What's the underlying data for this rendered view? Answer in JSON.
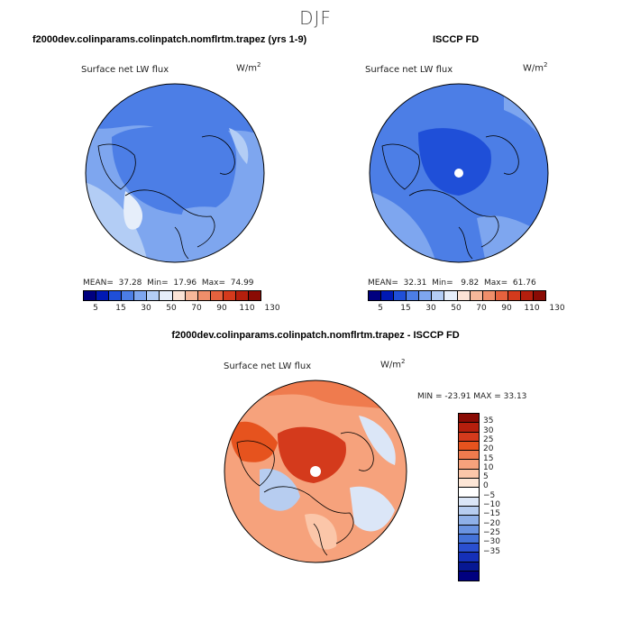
{
  "title": "DJF",
  "panel1": {
    "case": "f2000dev.colinparams.colinpatch.nomflrtm.trapez (yrs 1-9)",
    "variable": "Surface net LW flux",
    "unit_base": "W/m",
    "unit_exp": "2",
    "mean_label": "MEAN=",
    "mean": "37.28",
    "min_label": "Min=",
    "min": "17.96",
    "max_label": "Max=",
    "max": "74.99"
  },
  "panel2": {
    "case": "ISCCP FD",
    "variable": "Surface net LW flux",
    "unit_base": "W/m",
    "unit_exp": "2",
    "mean_label": "MEAN=",
    "mean": "32.31",
    "min_label": "Min=",
    "min": "9.82",
    "max_label": "Max=",
    "max": "61.76"
  },
  "panel3": {
    "case": "f2000dev.colinparams.colinpatch.nomflrtm.trapez - ISCCP FD",
    "variable": "Surface net LW flux",
    "unit_base": "W/m",
    "unit_exp": "2",
    "minmax": "MIN = -23.91 MAX =  33.13"
  },
  "colorbar_abs": {
    "colors": [
      "#00007f",
      "#0019b4",
      "#1f4fd8",
      "#4c7ee6",
      "#7ea6ef",
      "#b3cdf5",
      "#e6eefa",
      "#fbe3d6",
      "#f6b79a",
      "#ef8e6a",
      "#e6623e",
      "#d43a1c",
      "#b51f0d",
      "#8a0b04"
    ],
    "ticks": [
      "5",
      "15",
      "30",
      "50",
      "70",
      "90",
      "110",
      "130"
    ]
  },
  "colorbar_diff": {
    "colors": [
      "#8a0b04",
      "#b51f0d",
      "#d43a1c",
      "#e6531e",
      "#ef7b4e",
      "#f6a27c",
      "#fbc6a9",
      "#fde6d6",
      "#ffffff",
      "#dbe6f7",
      "#b7cdf0",
      "#8fb0e8",
      "#6a93e1",
      "#4472d8",
      "#2a4fd0",
      "#1530b8",
      "#071893",
      "#00007f"
    ],
    "ticks": [
      "35",
      "30",
      "25",
      "20",
      "15",
      "10",
      "5",
      "0",
      "−5",
      "−10",
      "−15",
      "−20",
      "−25",
      "−30",
      "−35"
    ]
  }
}
